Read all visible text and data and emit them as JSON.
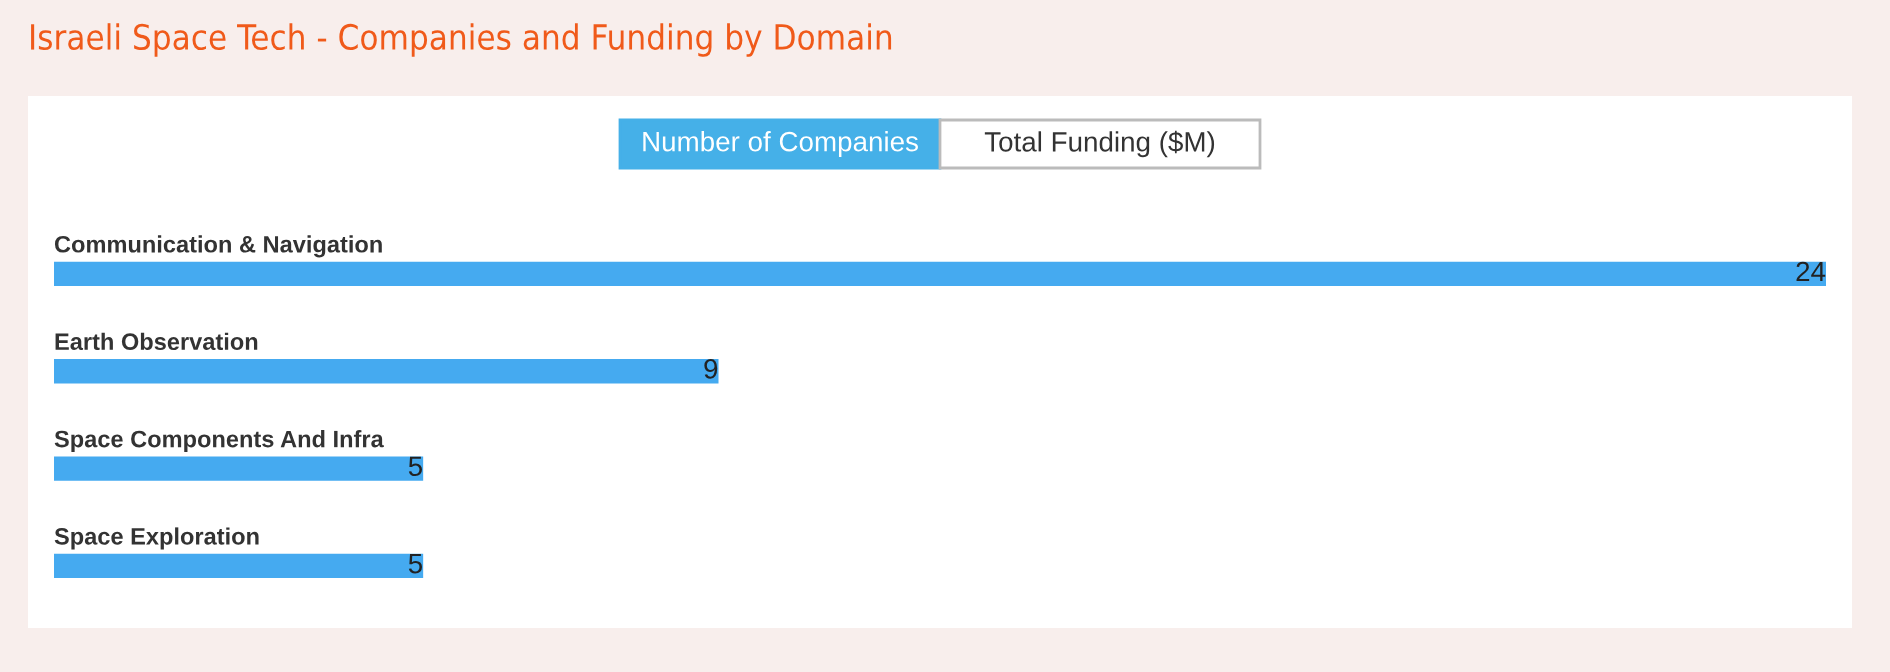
{
  "chart_data": {
    "type": "bar",
    "orientation": "horizontal",
    "title": "Israeli Space Tech - Companies and Funding by Domain",
    "annotations": [
      "Number of Companies",
      "Total Funding ($M)"
    ],
    "categories": [
      "Communication & Navigation",
      "Earth Observation",
      "Space Components And Infra",
      "Space Exploration"
    ],
    "values": [
      24,
      9,
      5,
      5
    ],
    "color": "#45aaf0",
    "xlim": [
      0,
      24
    ],
    "data_labels": true
  }
}
